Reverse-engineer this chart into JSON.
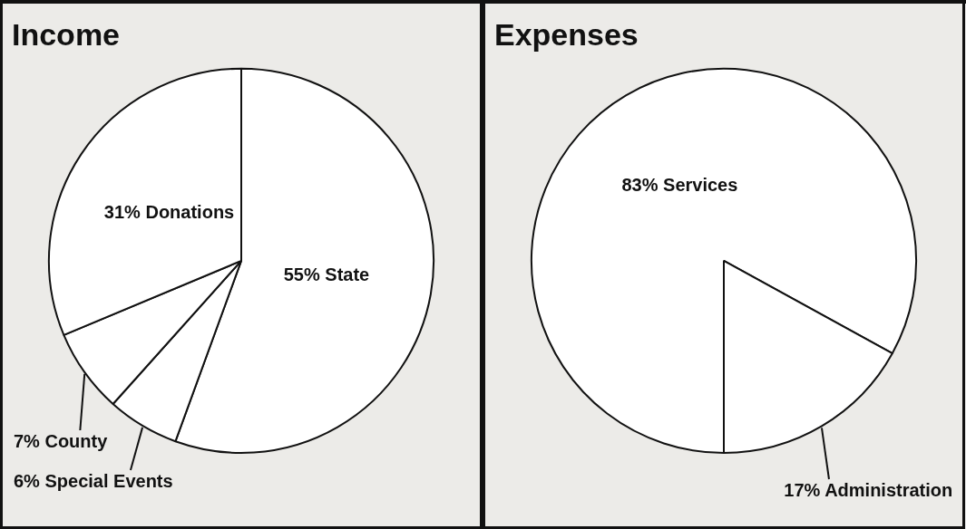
{
  "chart_data": [
    {
      "type": "pie",
      "title": "Income",
      "categories": [
        "State",
        "Special Events",
        "County",
        "Donations"
      ],
      "values": [
        55,
        6,
        7,
        31
      ],
      "value_labels": [
        "55%",
        "6%",
        "7%",
        "31%"
      ],
      "colors": [
        "#ffffff",
        "#ffffff",
        "#ffffff",
        "#ffffff"
      ],
      "legend": false
    },
    {
      "type": "pie",
      "title": "Expenses",
      "categories": [
        "Services",
        "Administration"
      ],
      "values": [
        83,
        17
      ],
      "value_labels": [
        "83%",
        "17%"
      ],
      "colors": [
        "#ffffff",
        "#ffffff"
      ],
      "legend": false
    }
  ]
}
